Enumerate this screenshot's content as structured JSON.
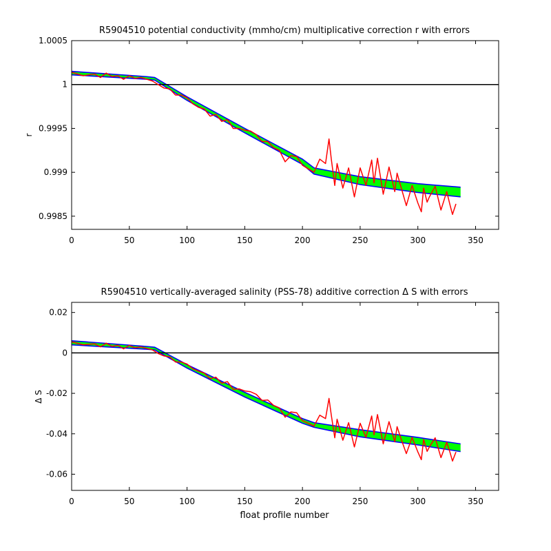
{
  "chart_data": [
    {
      "type": "line",
      "title": "R5904510 potential conductivity (mmho/cm) multiplicative correction r with errors",
      "xlabel": "",
      "ylabel": "r",
      "xlim": [
        0,
        370
      ],
      "ylim": [
        0.99835,
        1.0005
      ],
      "xticks": [
        0,
        50,
        100,
        150,
        200,
        250,
        300,
        350
      ],
      "xtick_labels": [
        "0",
        "50",
        "100",
        "150",
        "200",
        "250",
        "300",
        "350"
      ],
      "yticks": [
        0.9985,
        0.999,
        0.9995,
        1,
        1.0005
      ],
      "ytick_labels": [
        "0.9985",
        "0.999",
        "0.9995",
        "1",
        "1.0005"
      ],
      "reference_line": 1,
      "grid": false,
      "colors": {
        "band": "#00ff00",
        "bounds": "#0000ff",
        "series": "#ff0000",
        "reference": "#000000"
      },
      "band": {
        "x": [
          0,
          65,
          72,
          100,
          150,
          200,
          210,
          250,
          300,
          337
        ],
        "upper": [
          1.00015,
          1.00009,
          1.00008,
          0.99986,
          0.9995,
          0.99915,
          0.99905,
          0.99895,
          0.99887,
          0.99883
        ],
        "lower": [
          1.00011,
          1.00006,
          1.00005,
          0.99982,
          0.99945,
          0.99909,
          0.99898,
          0.99886,
          0.99877,
          0.99872
        ]
      },
      "series": [
        {
          "x": [
            0,
            10,
            20,
            25,
            30,
            35,
            40,
            45,
            50,
            55,
            60,
            65,
            70,
            75,
            80,
            85,
            90,
            95,
            100,
            105,
            110,
            115,
            120,
            125,
            130,
            135,
            140,
            145,
            150,
            155,
            160,
            165,
            170,
            175,
            180,
            185,
            190,
            195,
            200,
            205,
            210,
            215,
            220,
            223,
            225,
            228,
            230,
            235,
            240,
            245,
            250,
            255,
            260,
            262,
            265,
            270,
            275,
            280,
            282,
            285,
            290,
            295,
            300,
            303,
            305,
            308,
            310,
            315,
            320,
            325,
            328,
            330,
            333
          ],
          "y": [
            1.00014,
            1.0001,
            1.00012,
            1.00008,
            1.00013,
            1.00009,
            1.0001,
            1.00006,
            1.0001,
            1.00007,
            1.00008,
            1.00006,
            1.00004,
            1.0,
            0.99996,
            0.99995,
            0.99988,
            0.99988,
            0.99985,
            0.99978,
            0.99974,
            0.99972,
            0.99964,
            0.99966,
            0.99958,
            0.9996,
            0.9995,
            0.9995,
            0.99948,
            0.99947,
            0.99943,
            0.99935,
            0.99935,
            0.99928,
            0.99925,
            0.99912,
            0.99919,
            0.99918,
            0.99908,
            0.99904,
            0.999,
            0.99915,
            0.9991,
            0.99938,
            0.99915,
            0.99885,
            0.9991,
            0.99882,
            0.99905,
            0.99872,
            0.99905,
            0.99885,
            0.99914,
            0.99888,
            0.99916,
            0.99875,
            0.99906,
            0.99878,
            0.99899,
            0.99885,
            0.99862,
            0.99885,
            0.99865,
            0.99855,
            0.99882,
            0.99866,
            0.99872,
            0.99884,
            0.99857,
            0.99878,
            0.99862,
            0.99852,
            0.99864
          ]
        }
      ]
    },
    {
      "type": "line",
      "title": "R5904510 vertically-averaged salinity (PSS-78) additive correction Δ S with errors",
      "xlabel": "float profile number",
      "ylabel": "Δ S",
      "xlim": [
        0,
        370
      ],
      "ylim": [
        -0.068,
        0.025
      ],
      "xticks": [
        0,
        50,
        100,
        150,
        200,
        250,
        300,
        350
      ],
      "xtick_labels": [
        "0",
        "50",
        "100",
        "150",
        "200",
        "250",
        "300",
        "350"
      ],
      "yticks": [
        -0.06,
        -0.04,
        -0.02,
        0,
        0.02
      ],
      "ytick_labels": [
        "-0.06",
        "-0.04",
        "-0.02",
        "0",
        "0.02"
      ],
      "reference_line": 0,
      "grid": false,
      "colors": {
        "band": "#00ff00",
        "bounds": "#0000ff",
        "series": "#ff0000",
        "reference": "#000000"
      },
      "band": {
        "x": [
          0,
          65,
          72,
          100,
          150,
          200,
          210,
          250,
          300,
          337
        ],
        "upper": [
          0.006,
          0.0032,
          0.0028,
          -0.0058,
          -0.0195,
          -0.0325,
          -0.0345,
          -0.038,
          -0.0418,
          -0.045
        ],
        "lower": [
          0.004,
          0.0018,
          0.0015,
          -0.0075,
          -0.0218,
          -0.0348,
          -0.0368,
          -0.0415,
          -0.0455,
          -0.0488
        ]
      },
      "series": [
        {
          "x": [
            0,
            10,
            20,
            25,
            30,
            35,
            40,
            45,
            50,
            55,
            60,
            65,
            70,
            75,
            80,
            85,
            90,
            95,
            100,
            105,
            110,
            115,
            120,
            125,
            130,
            135,
            140,
            145,
            150,
            155,
            160,
            165,
            170,
            175,
            180,
            185,
            190,
            195,
            200,
            205,
            210,
            215,
            220,
            223,
            225,
            228,
            230,
            235,
            240,
            245,
            250,
            255,
            260,
            262,
            265,
            270,
            275,
            280,
            282,
            285,
            290,
            295,
            300,
            303,
            305,
            308,
            310,
            315,
            320,
            325,
            328,
            330,
            333
          ],
          "y": [
            0.0055,
            0.004,
            0.0045,
            0.003,
            0.0048,
            0.0032,
            0.0038,
            0.002,
            0.0037,
            0.0025,
            0.003,
            0.0022,
            0.0015,
            -0.0003,
            -0.0015,
            -0.002,
            -0.0045,
            -0.0045,
            -0.0055,
            -0.0078,
            -0.009,
            -0.01,
            -0.0128,
            -0.012,
            -0.015,
            -0.0142,
            -0.018,
            -0.0178,
            -0.0188,
            -0.0192,
            -0.0205,
            -0.0235,
            -0.0233,
            -0.026,
            -0.0272,
            -0.0318,
            -0.0292,
            -0.0296,
            -0.0335,
            -0.0348,
            -0.0362,
            -0.0308,
            -0.0325,
            -0.0225,
            -0.0308,
            -0.042,
            -0.0328,
            -0.0432,
            -0.0345,
            -0.0465,
            -0.0348,
            -0.0418,
            -0.0312,
            -0.0405,
            -0.0305,
            -0.045,
            -0.034,
            -0.044,
            -0.0365,
            -0.0418,
            -0.0498,
            -0.0418,
            -0.049,
            -0.0528,
            -0.0428,
            -0.0487,
            -0.0465,
            -0.042,
            -0.0518,
            -0.0442,
            -0.0495,
            -0.0535,
            -0.049
          ]
        }
      ]
    }
  ]
}
